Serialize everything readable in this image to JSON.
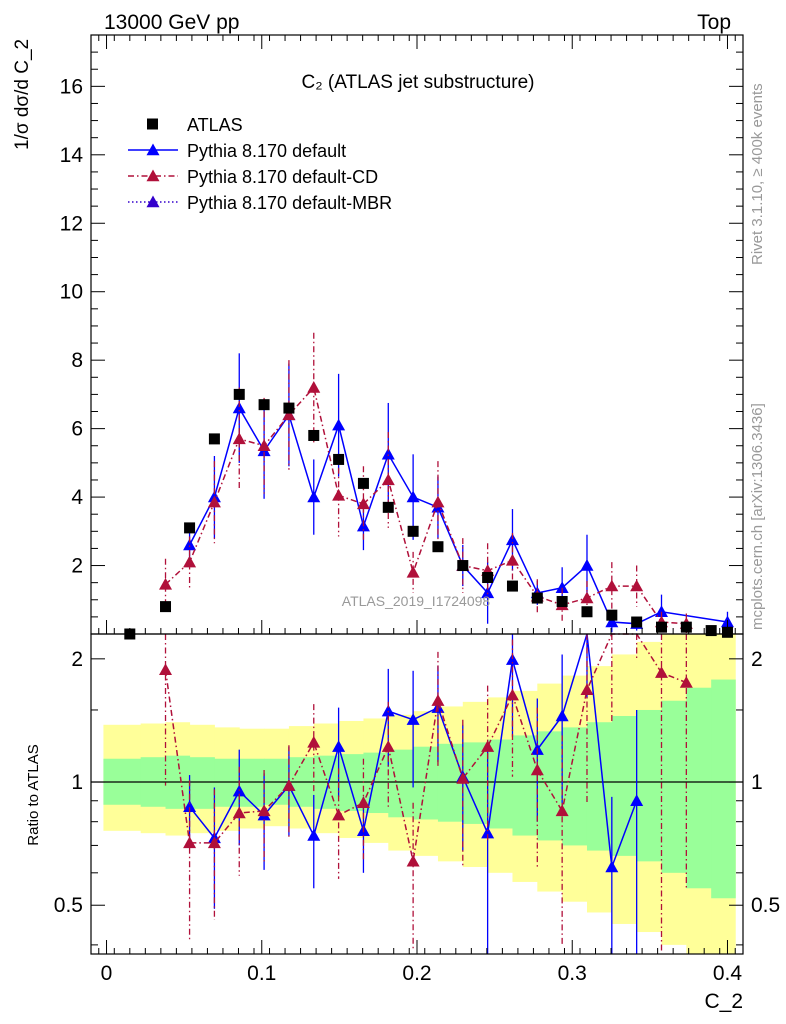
{
  "header": {
    "left": "13000 GeV pp",
    "right": "Top"
  },
  "side_labels": {
    "rivet": "Rivet 3.1.10, ≥ 400k events",
    "mcplots": "mcplots.cern.ch [arXiv:1306.3436]"
  },
  "watermark": "ATLAS_2019_I1724098",
  "colors": {
    "atlas": "#000000",
    "pythia_default": "#0000ff",
    "pythia_cd": "#b0103a",
    "pythia_mbr": "#3300cc",
    "band_inner": "#99ff99",
    "band_outer": "#ffff99"
  },
  "chart_data": [
    {
      "type": "scatter",
      "panel": "main",
      "title": "C₂ (ATLAS jet substructure)",
      "ylabel": "1/σ dσ/d C_2",
      "xlim": [
        -0.01,
        0.41
      ],
      "ylim": [
        0,
        17.5
      ],
      "yticks": [
        0,
        2,
        4,
        6,
        8,
        10,
        12,
        14,
        16
      ],
      "legend_position": "top-left",
      "series": [
        {
          "name": "ATLAS",
          "style": "square",
          "x": [
            0.015,
            0.038,
            0.0535,
            0.0695,
            0.0855,
            0.1015,
            0.1175,
            0.1335,
            0.1495,
            0.1655,
            0.1815,
            0.1975,
            0.2135,
            0.2295,
            0.2455,
            0.2615,
            0.2775,
            0.2935,
            0.3095,
            0.3255,
            0.3415,
            0.3575,
            0.3735,
            0.3895,
            0.4
          ],
          "y": [
            0.0,
            0.8,
            3.1,
            5.7,
            7.0,
            6.7,
            6.6,
            5.8,
            5.1,
            4.4,
            3.7,
            3.0,
            2.55,
            2.0,
            1.65,
            1.4,
            1.05,
            0.95,
            0.65,
            0.55,
            0.35,
            0.2,
            0.2,
            0.1,
            0.05
          ]
        },
        {
          "name": "Pythia 8.170 default",
          "style": "solid",
          "x": [
            0.0535,
            0.0695,
            0.0855,
            0.1015,
            0.1175,
            0.1335,
            0.1495,
            0.1655,
            0.1815,
            0.1975,
            0.2135,
            0.2295,
            0.2455,
            0.2615,
            0.2775,
            0.2935,
            0.3095,
            0.3255,
            0.3415,
            0.3575,
            0.4
          ],
          "y": [
            2.6,
            4.0,
            6.6,
            5.35,
            6.4,
            4.0,
            6.1,
            3.15,
            5.25,
            4.0,
            3.7,
            2.0,
            1.2,
            2.75,
            1.2,
            1.35,
            2.0,
            0.35,
            0.3,
            0.65,
            0.35
          ],
          "err": [
            0.4,
            1.2,
            1.6,
            1.4,
            1.5,
            1.1,
            1.5,
            0.7,
            1.5,
            1.25,
            0.9,
            0.6,
            0.9,
            0.9,
            0.35,
            0.6,
            0.9,
            0.3,
            0.2,
            0.5,
            0.3
          ]
        },
        {
          "name": "Pythia 8.170 default-CD",
          "style": "dashdot",
          "x": [
            0.038,
            0.0535,
            0.0695,
            0.0855,
            0.1015,
            0.1175,
            0.1335,
            0.1495,
            0.1655,
            0.1815,
            0.1975,
            0.2135,
            0.2295,
            0.2455,
            0.2615,
            0.2775,
            0.2935,
            0.3095,
            0.3255,
            0.3415,
            0.3575,
            0.3735
          ],
          "y": [
            1.45,
            2.1,
            3.85,
            5.7,
            5.5,
            6.4,
            7.2,
            4.05,
            3.8,
            4.5,
            1.8,
            3.85,
            2.0,
            1.85,
            2.15,
            1.1,
            0.85,
            1.05,
            1.4,
            1.4,
            0.35,
            0.3
          ],
          "err": [
            0.75,
            0.75,
            1.2,
            1.5,
            1.4,
            1.6,
            1.6,
            1.2,
            1.1,
            1.4,
            0.6,
            1.2,
            0.8,
            0.8,
            0.8,
            0.5,
            0.5,
            0.5,
            0.7,
            0.6,
            0.3,
            0.3
          ]
        },
        {
          "name": "Pythia 8.170 default-MBR",
          "style": "dotted",
          "x": [],
          "y": []
        }
      ]
    },
    {
      "type": "line",
      "panel": "ratio",
      "ylabel": "Ratio to ATLAS",
      "xlabel": "C_2",
      "xlim": [
        -0.01,
        0.41
      ],
      "ylim": [
        0.38,
        2.3
      ],
      "log_y": true,
      "yticks": [
        0.5,
        1,
        2
      ],
      "xticks": [
        0,
        0.1,
        0.2,
        0.3,
        0.4
      ],
      "band_edges": [
        -0.002,
        0.022,
        0.038,
        0.0535,
        0.0695,
        0.0855,
        0.1015,
        0.1175,
        0.1335,
        0.1495,
        0.1655,
        0.1815,
        0.1975,
        0.2135,
        0.2295,
        0.2455,
        0.2615,
        0.2775,
        0.2935,
        0.3095,
        0.3255,
        0.3415,
        0.3575,
        0.3735,
        0.3895,
        0.405
      ],
      "band_inner": {
        "lo": [
          0.88,
          0.87,
          0.86,
          0.86,
          0.87,
          0.87,
          0.88,
          0.87,
          0.86,
          0.85,
          0.84,
          0.82,
          0.81,
          0.8,
          0.79,
          0.77,
          0.74,
          0.72,
          0.7,
          0.68,
          0.66,
          0.64,
          0.6,
          0.55,
          0.52
        ],
        "hi": [
          1.14,
          1.15,
          1.16,
          1.15,
          1.14,
          1.14,
          1.14,
          1.15,
          1.16,
          1.17,
          1.18,
          1.2,
          1.22,
          1.24,
          1.25,
          1.27,
          1.3,
          1.33,
          1.36,
          1.4,
          1.45,
          1.5,
          1.58,
          1.7,
          1.78
        ]
      },
      "band_outer": {
        "lo": [
          0.76,
          0.75,
          0.74,
          0.75,
          0.76,
          0.77,
          0.78,
          0.77,
          0.75,
          0.73,
          0.71,
          0.68,
          0.66,
          0.64,
          0.62,
          0.6,
          0.57,
          0.54,
          0.51,
          0.48,
          0.45,
          0.43,
          0.4,
          0.38,
          0.38
        ],
        "hi": [
          1.38,
          1.39,
          1.4,
          1.38,
          1.36,
          1.35,
          1.35,
          1.37,
          1.39,
          1.41,
          1.43,
          1.46,
          1.49,
          1.53,
          1.57,
          1.61,
          1.67,
          1.74,
          1.82,
          1.92,
          2.05,
          2.2,
          2.3,
          2.3,
          2.3
        ]
      },
      "series": [
        {
          "name": "Pythia 8.170 default",
          "style": "solid",
          "x": [
            0.0535,
            0.0695,
            0.0855,
            0.1015,
            0.1175,
            0.1335,
            0.1495,
            0.1655,
            0.1815,
            0.1975,
            0.2135,
            0.2295,
            0.2455,
            0.2615,
            0.2775,
            0.2935,
            0.3095,
            0.3255,
            0.3415
          ],
          "y": [
            0.87,
            0.73,
            0.95,
            0.83,
            0.98,
            0.74,
            1.22,
            0.76,
            1.49,
            1.42,
            1.52,
            1.03,
            0.75,
            1.99,
            1.2,
            1.45,
            2.8,
            0.62,
            0.9
          ],
          "err": [
            0.17,
            0.24,
            0.25,
            0.22,
            0.24,
            0.19,
            0.3,
            0.16,
            0.4,
            0.45,
            0.4,
            0.35,
            0.5,
            0.7,
            0.4,
            0.6,
            1.2,
            0.3,
            0.6
          ]
        },
        {
          "name": "Pythia 8.170 default-CD",
          "style": "dashdot",
          "x": [
            0.038,
            0.0535,
            0.0695,
            0.0855,
            0.1015,
            0.1175,
            0.1335,
            0.1495,
            0.1655,
            0.1815,
            0.1975,
            0.2135,
            0.2295,
            0.2455,
            0.2615,
            0.2775,
            0.2935,
            0.3095,
            0.3255,
            0.3415,
            0.3575,
            0.3735
          ],
          "y": [
            1.88,
            0.71,
            0.71,
            0.84,
            0.85,
            0.98,
            1.25,
            0.83,
            0.89,
            1.22,
            0.64,
            1.58,
            1.02,
            1.22,
            1.63,
            1.07,
            0.85,
            1.68,
            2.6,
            4.0,
            1.85,
            1.75
          ],
          "err": [
            0.9,
            0.3,
            0.25,
            0.25,
            0.22,
            0.25,
            0.3,
            0.25,
            0.25,
            0.35,
            0.25,
            0.5,
            0.4,
            0.5,
            0.6,
            0.45,
            0.45,
            0.8,
            1.2,
            2.0,
            1.5,
            1.2
          ]
        }
      ]
    }
  ]
}
